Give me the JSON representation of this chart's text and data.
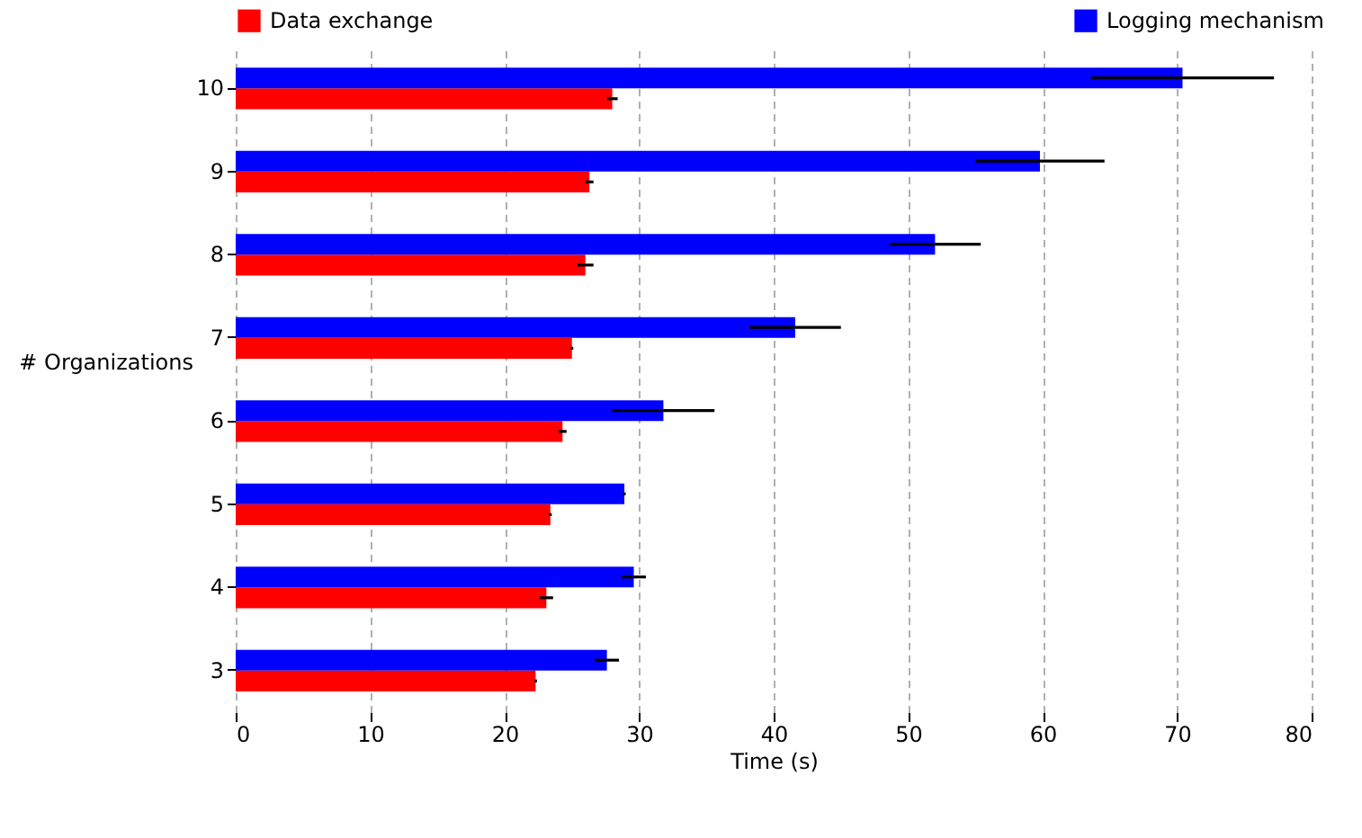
{
  "chart_data": {
    "type": "bar",
    "orientation": "horizontal",
    "xlabel": "Time (s)",
    "ylabel": "# Organizations",
    "categories": [
      "10",
      "9",
      "8",
      "7",
      "6",
      "5",
      "4",
      "3"
    ],
    "series": [
      {
        "name": "Data exchange",
        "color": "#ff0000",
        "values": [
          28.0,
          26.3,
          26.0,
          25.0,
          24.3,
          23.4,
          23.1,
          22.3
        ],
        "errors": [
          0.4,
          0.3,
          0.6,
          0.1,
          0.3,
          0.1,
          0.5,
          0.1
        ]
      },
      {
        "name": "Logging mechanism",
        "color": "#0000ff",
        "values": [
          70.4,
          59.8,
          52.0,
          41.6,
          31.8,
          28.9,
          29.6,
          27.6
        ],
        "errors": [
          6.8,
          4.8,
          3.4,
          3.4,
          3.8,
          0.1,
          0.9,
          0.9
        ]
      }
    ],
    "xlim": [
      0,
      80
    ],
    "xticks": [
      0,
      10,
      20,
      30,
      40,
      50,
      60,
      70,
      80
    ],
    "grid": "x",
    "legend": "top"
  }
}
